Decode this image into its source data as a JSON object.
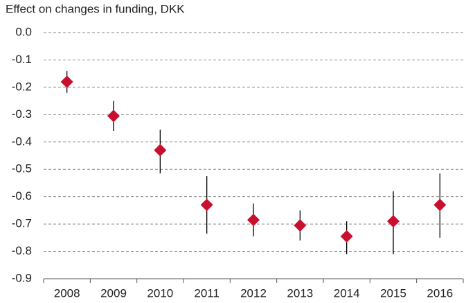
{
  "chart_data": {
    "type": "errorpoint",
    "title": "Effect on changes in funding, DKK",
    "categories": [
      "2008",
      "2009",
      "2010",
      "2011",
      "2012",
      "2013",
      "2014",
      "2015",
      "2016"
    ],
    "values": [
      -0.18,
      -0.305,
      -0.43,
      -0.63,
      -0.685,
      -0.705,
      -0.745,
      -0.69,
      -0.63
    ],
    "lower": [
      -0.22,
      -0.36,
      -0.515,
      -0.735,
      -0.745,
      -0.76,
      -0.81,
      -0.81,
      -0.75
    ],
    "upper": [
      -0.14,
      -0.25,
      -0.355,
      -0.525,
      -0.625,
      -0.65,
      -0.69,
      -0.58,
      -0.515
    ],
    "color": "#c8102e",
    "error_color": "#000000",
    "ylim": [
      -0.9,
      0
    ],
    "yticks": [
      {
        "value": 0,
        "label": "0.0"
      },
      -0.1,
      -0.2,
      -0.3,
      -0.4,
      -0.5,
      -0.6,
      -0.7,
      -0.8,
      -0.9
    ],
    "grid": true
  }
}
